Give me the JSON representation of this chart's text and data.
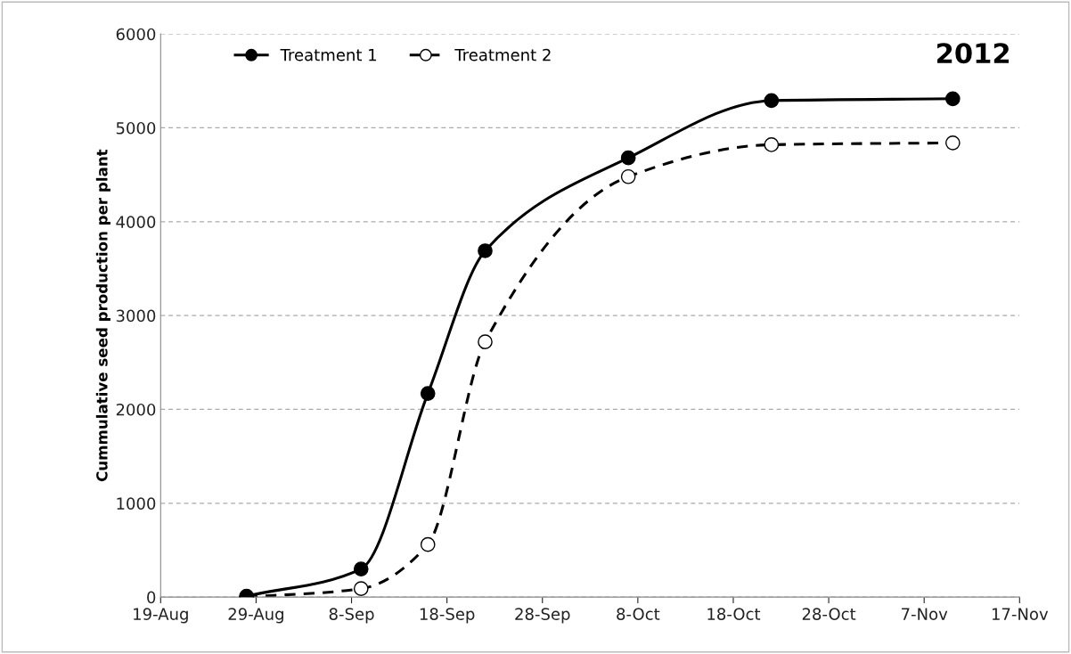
{
  "chart_data": {
    "type": "line",
    "ylabel": "Cummulative seed production per plant",
    "annotations": [
      "2012"
    ],
    "series": [
      {
        "name": "Treatment 1",
        "color": "#000000",
        "line_style": "solid",
        "x": [
          "2012-08-28",
          "2012-09-09",
          "2012-09-16",
          "2012-09-22",
          "2012-10-07",
          "2012-10-22",
          "2012-11-10"
        ],
        "values": [
          10,
          300,
          2170,
          3690,
          4680,
          5290,
          5310
        ]
      },
      {
        "name": "Treatment 2",
        "color": "#000000",
        "line_style": "dashed",
        "x": [
          "2012-08-28",
          "2012-09-09",
          "2012-09-16",
          "2012-09-22",
          "2012-10-07",
          "2012-10-22",
          "2012-11-10"
        ],
        "values": [
          0,
          90,
          560,
          2720,
          4480,
          4820,
          4840
        ]
      }
    ],
    "xlim": [
      "2012-08-19",
      "2012-11-17"
    ],
    "xticks": [
      {
        "value": "2012-08-19",
        "label": "19-Aug"
      },
      {
        "value": "2012-08-29",
        "label": "29-Aug"
      },
      {
        "value": "2012-09-08",
        "label": "8-Sep"
      },
      {
        "value": "2012-09-18",
        "label": "18-Sep"
      },
      {
        "value": "2012-09-28",
        "label": "28-Sep"
      },
      {
        "value": "2012-10-08",
        "label": "8-Oct"
      },
      {
        "value": "2012-10-18",
        "label": "18-Oct"
      },
      {
        "value": "2012-10-28",
        "label": "28-Oct"
      },
      {
        "value": "2012-11-07",
        "label": "7-Nov"
      },
      {
        "value": "2012-11-17",
        "label": "17-Nov"
      }
    ],
    "ylim": [
      0,
      6000
    ],
    "yticks": [
      0,
      1000,
      2000,
      3000,
      4000,
      5000,
      6000
    ],
    "grid": "y",
    "legend": "top left",
    "marker": "circle"
  }
}
